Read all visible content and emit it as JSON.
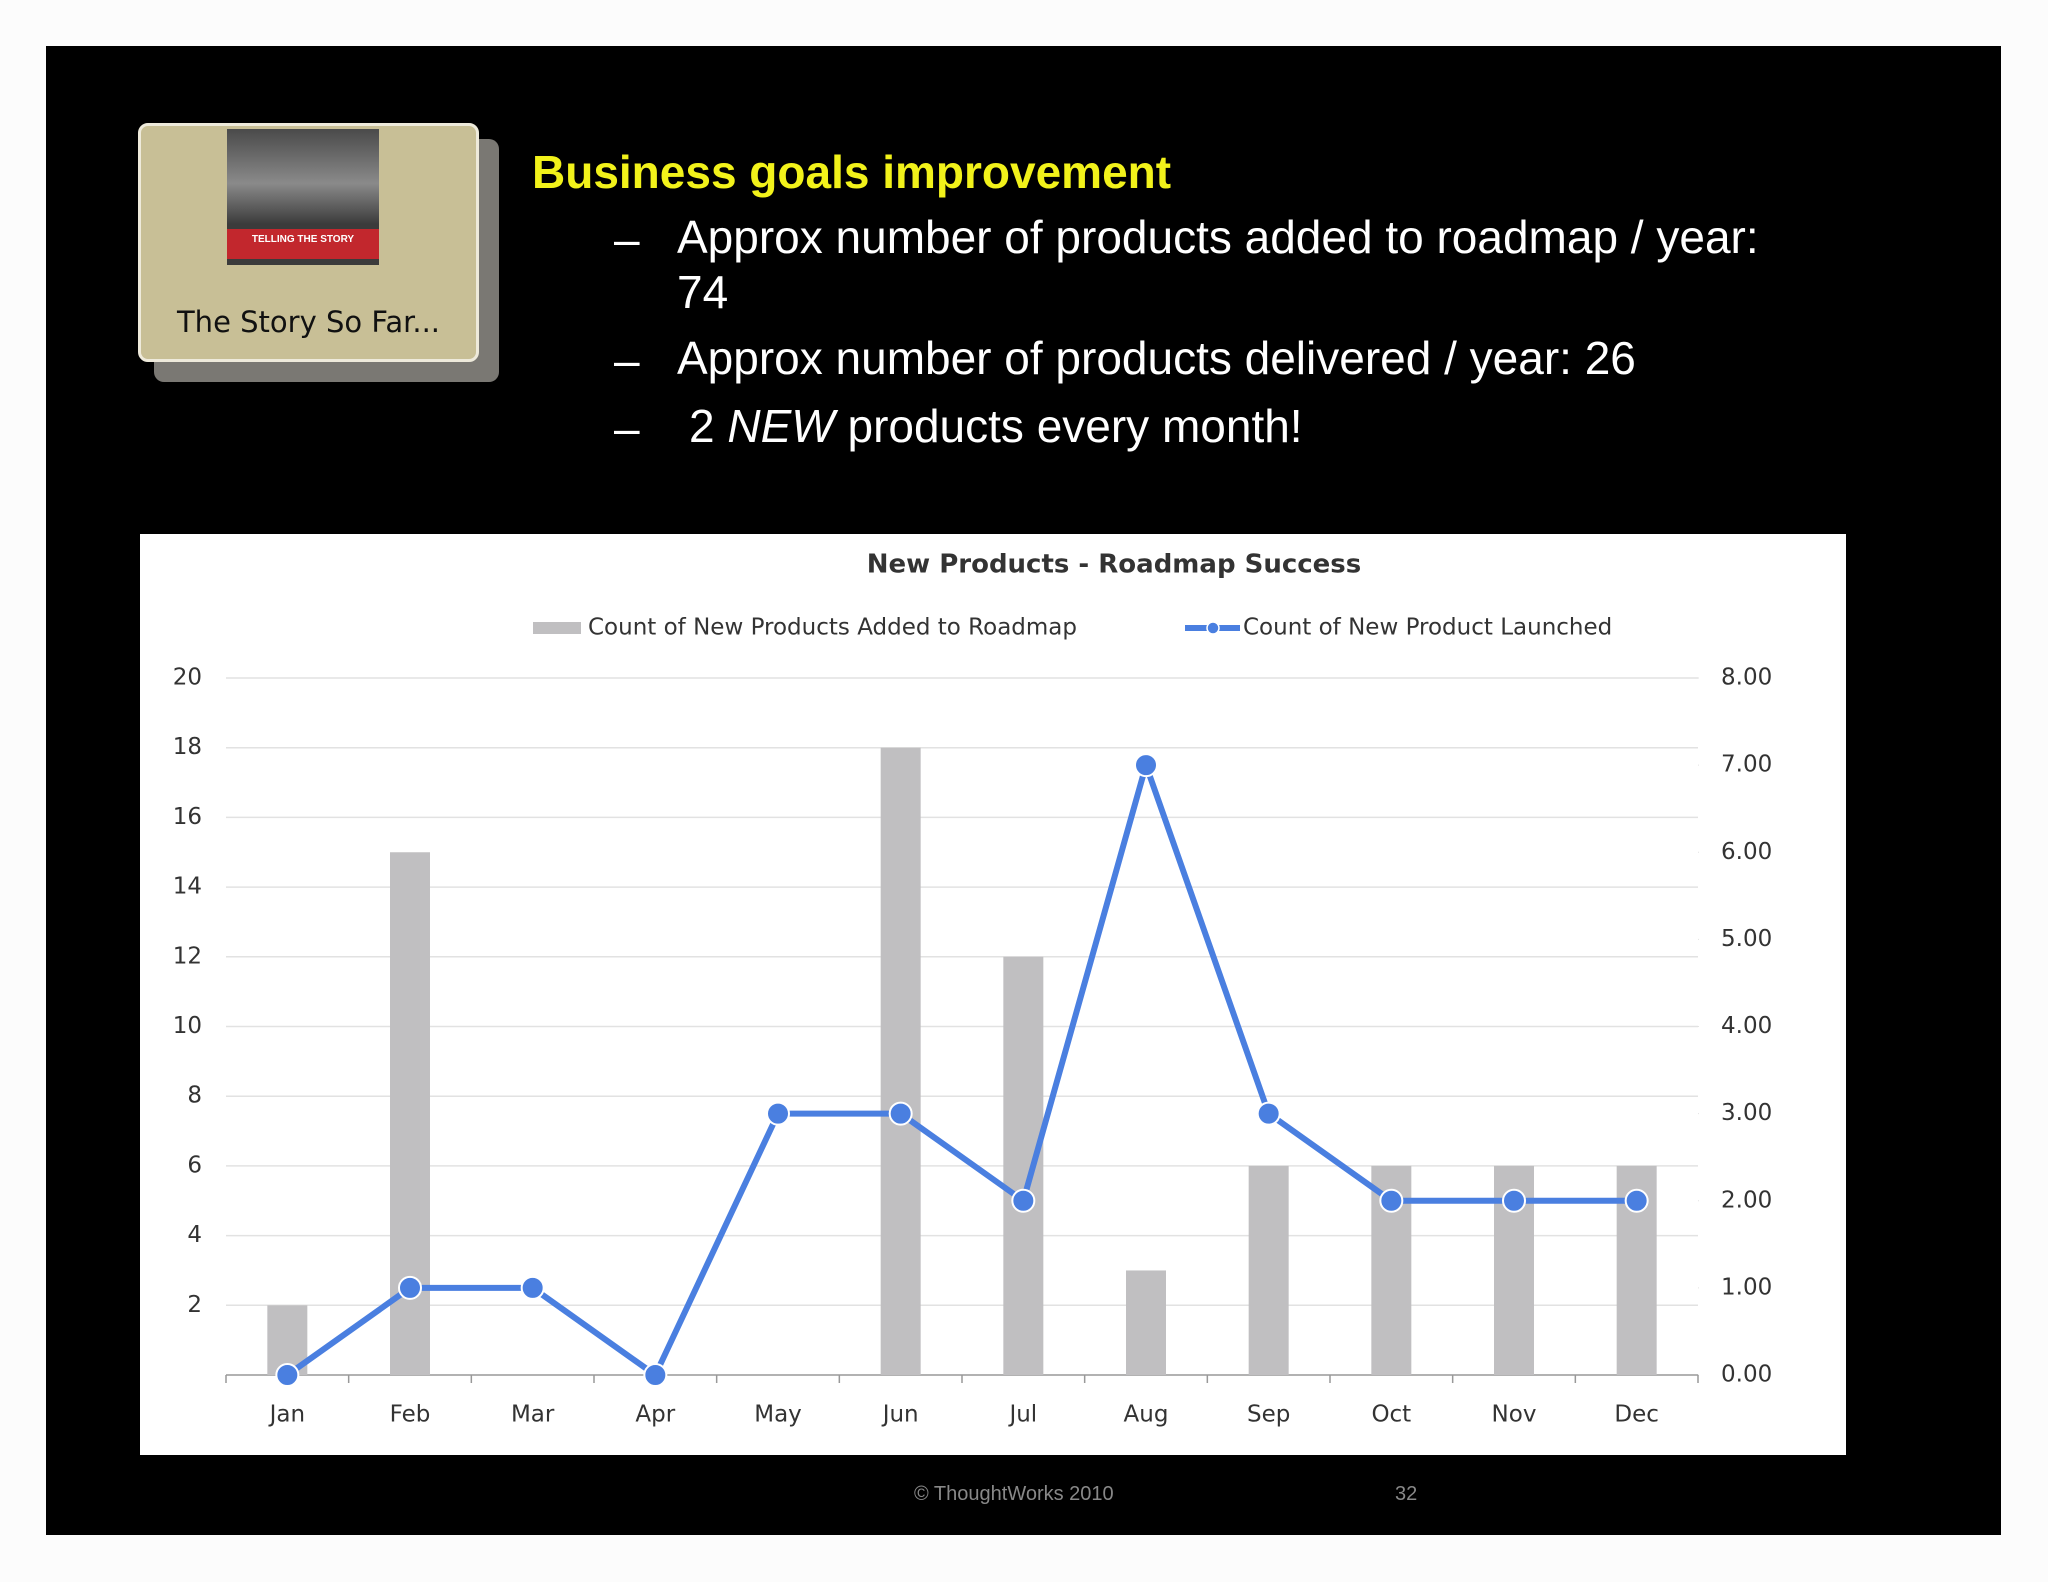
{
  "slide": {
    "thumbnail": {
      "cover_text": "TELLING THE STORY",
      "caption": "The Story So Far..."
    },
    "heading": "Business goals improvement",
    "bullets": [
      {
        "dash": "–",
        "text": "Approx number of products added to roadmap / year: 74"
      },
      {
        "dash": "–",
        "text": "Approx number of products delivered / year: 26"
      },
      {
        "dash": "–",
        "parts": [
          "2",
          "NEW",
          "products every month!"
        ]
      }
    ],
    "footer": {
      "copyright": "© ThoughtWorks 2010",
      "page": "32"
    }
  },
  "chart_data": {
    "type": "bar+line",
    "title": "New Products - Roadmap Success",
    "categories": [
      "Jan",
      "Feb",
      "Mar",
      "Apr",
      "May",
      "Jun",
      "Jul",
      "Aug",
      "Sep",
      "Oct",
      "Nov",
      "Dec"
    ],
    "series": [
      {
        "name": "Count of New Products Added to Roadmap",
        "type": "bar",
        "color": "#c0bfc1",
        "values": [
          2,
          15,
          0,
          0,
          0,
          18,
          12,
          3,
          6,
          6,
          6,
          6
        ]
      },
      {
        "name": "Count of New Product Launched",
        "type": "line",
        "axis": "y2",
        "color": "#4a7fe0",
        "values": [
          0,
          1,
          1,
          0,
          3,
          3,
          2,
          7,
          3,
          2,
          2,
          2
        ]
      }
    ],
    "ylim": [
      0,
      20
    ],
    "yticks": [
      2,
      4,
      6,
      8,
      10,
      12,
      14,
      16,
      18,
      20
    ],
    "y2lim": [
      0,
      8
    ],
    "y2ticks": [
      {
        "value": 0,
        "label": "0.00"
      },
      {
        "value": 1,
        "label": "1.00"
      },
      {
        "value": 2,
        "label": "2.00"
      },
      {
        "value": 3,
        "label": "3.00"
      },
      {
        "value": 4,
        "label": "4.00"
      },
      {
        "value": 5,
        "label": "5.00"
      },
      {
        "value": 6,
        "label": "6.00"
      },
      {
        "value": 7,
        "label": "7.00"
      },
      {
        "value": 8,
        "label": "8.00"
      }
    ],
    "grid": true,
    "legend": "top"
  }
}
